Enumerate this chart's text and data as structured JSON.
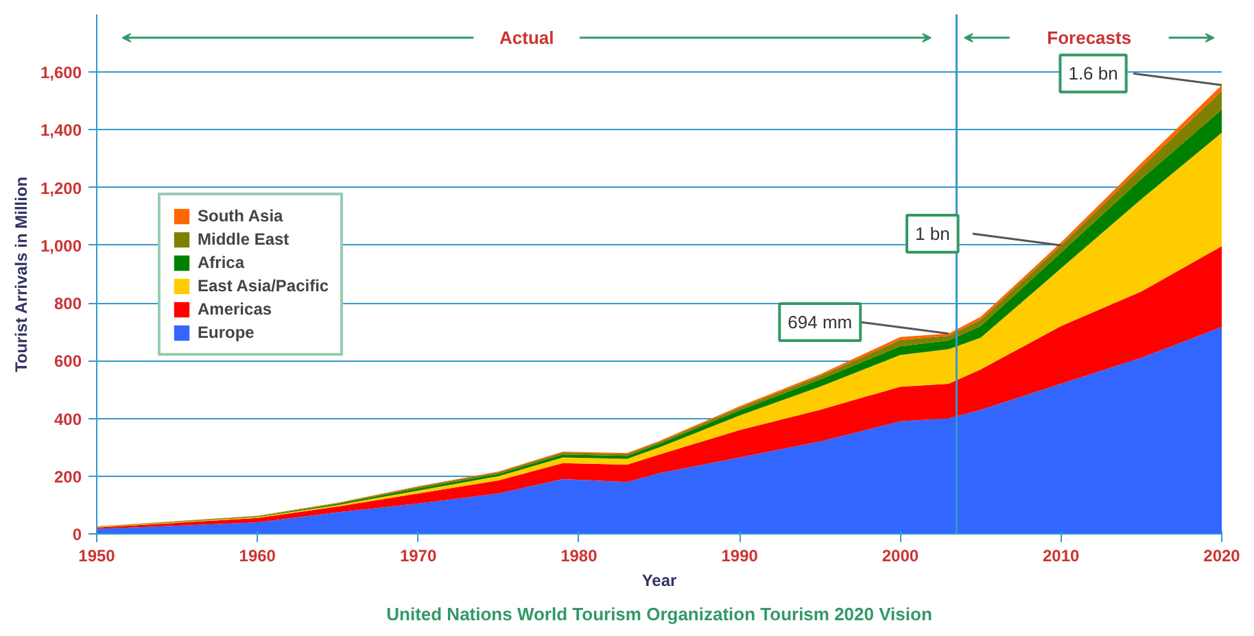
{
  "chart_data": {
    "type": "area",
    "stacked": true,
    "xlabel": "Year",
    "ylabel": "Tourist Arrivals in Million",
    "x": [
      1950,
      1960,
      1965,
      1970,
      1975,
      1979,
      1983,
      1985,
      1990,
      1995,
      2000,
      2003,
      2005,
      2010,
      2015,
      2020
    ],
    "series": [
      {
        "name": "Europe",
        "color": "#3366ff",
        "values": [
          17,
          40,
          75,
          105,
          140,
          190,
          180,
          210,
          265,
          320,
          390,
          400,
          430,
          520,
          610,
          717
        ]
      },
      {
        "name": "Americas",
        "color": "#ff0000",
        "values": [
          5,
          15,
          20,
          35,
          45,
          55,
          60,
          65,
          95,
          110,
          120,
          120,
          140,
          200,
          230,
          280
        ]
      },
      {
        "name": "East Asia/Pacific",
        "color": "#ffcc00",
        "values": [
          1,
          3,
          5,
          10,
          15,
          20,
          20,
          25,
          50,
          80,
          110,
          120,
          110,
          200,
          320,
          393
        ]
      },
      {
        "name": "Africa",
        "color": "#008000",
        "values": [
          1,
          2,
          4,
          8,
          8,
          10,
          10,
          12,
          18,
          25,
          30,
          30,
          40,
          55,
          70,
          80
        ]
      },
      {
        "name": "Middle East",
        "color": "#808000",
        "values": [
          1,
          2,
          3,
          5,
          6,
          7,
          7,
          6,
          9,
          12,
          22,
          16,
          22,
          25,
          40,
          65
        ]
      },
      {
        "name": "South Asia",
        "color": "#ff6600",
        "values": [
          1,
          1,
          1,
          2,
          2,
          3,
          3,
          4,
          5,
          6,
          10,
          8,
          10,
          10,
          15,
          20
        ]
      }
    ],
    "xlim": [
      1950,
      2020
    ],
    "ylim": [
      0,
      1800
    ],
    "xticks": [
      1950,
      1960,
      1970,
      1980,
      1990,
      2000,
      2010,
      2020
    ],
    "yticks": [
      0,
      200,
      400,
      600,
      800,
      {
        "value": 1000,
        "label": "1,000"
      },
      {
        "value": 1200,
        "label": "1,200"
      },
      {
        "value": 1400,
        "label": "1,400"
      },
      {
        "value": 1600,
        "label": "1,600"
      }
    ],
    "grid": "y",
    "legend": "left",
    "ref_lines": [
      {
        "axis": "x",
        "value": 2003.5
      }
    ],
    "annotations": [
      "Actual",
      "Forecasts",
      {
        "text": "694 mm",
        "x": 2003,
        "y": 694
      },
      {
        "text": "1 bn",
        "x": 2010,
        "y": 1000
      },
      {
        "text": "1.6 bn",
        "x": 2020,
        "y": 1555
      },
      "United Nations World Tourism Organization Tourism 2020 Vision"
    ]
  }
}
